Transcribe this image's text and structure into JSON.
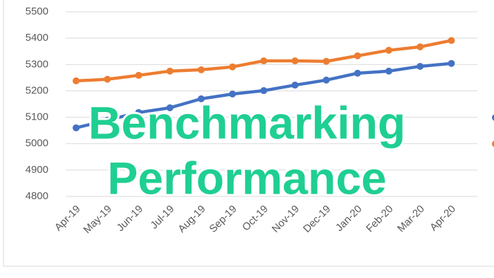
{
  "chart_data": {
    "type": "line",
    "annotations": [
      "Benchmarking",
      "Performance"
    ],
    "categories": [
      "Apr-19",
      "May-19",
      "Jun-19",
      "Jul-19",
      "Aug-19",
      "Sep-19",
      "Oct-19",
      "Nov-19",
      "Dec-19",
      "Jan-20",
      "Feb-20",
      "Mar-20",
      "Apr-20"
    ],
    "series": [
      {
        "color": "#4472c4",
        "values": [
          5060,
          5089,
          5118,
          5136,
          5170,
          5188,
          5201,
          5222,
          5241,
          5267,
          5275,
          5293,
          5304
        ]
      },
      {
        "color": "#ed7d31",
        "values": [
          5238,
          5244,
          5259,
          5275,
          5280,
          5291,
          5314,
          5314,
          5312,
          5333,
          5354,
          5367,
          5391
        ]
      }
    ],
    "ylim": [
      4800,
      5500
    ],
    "yticks": [
      4800,
      4900,
      5000,
      5100,
      5200,
      5300,
      5400,
      5500
    ],
    "grid": true
  }
}
